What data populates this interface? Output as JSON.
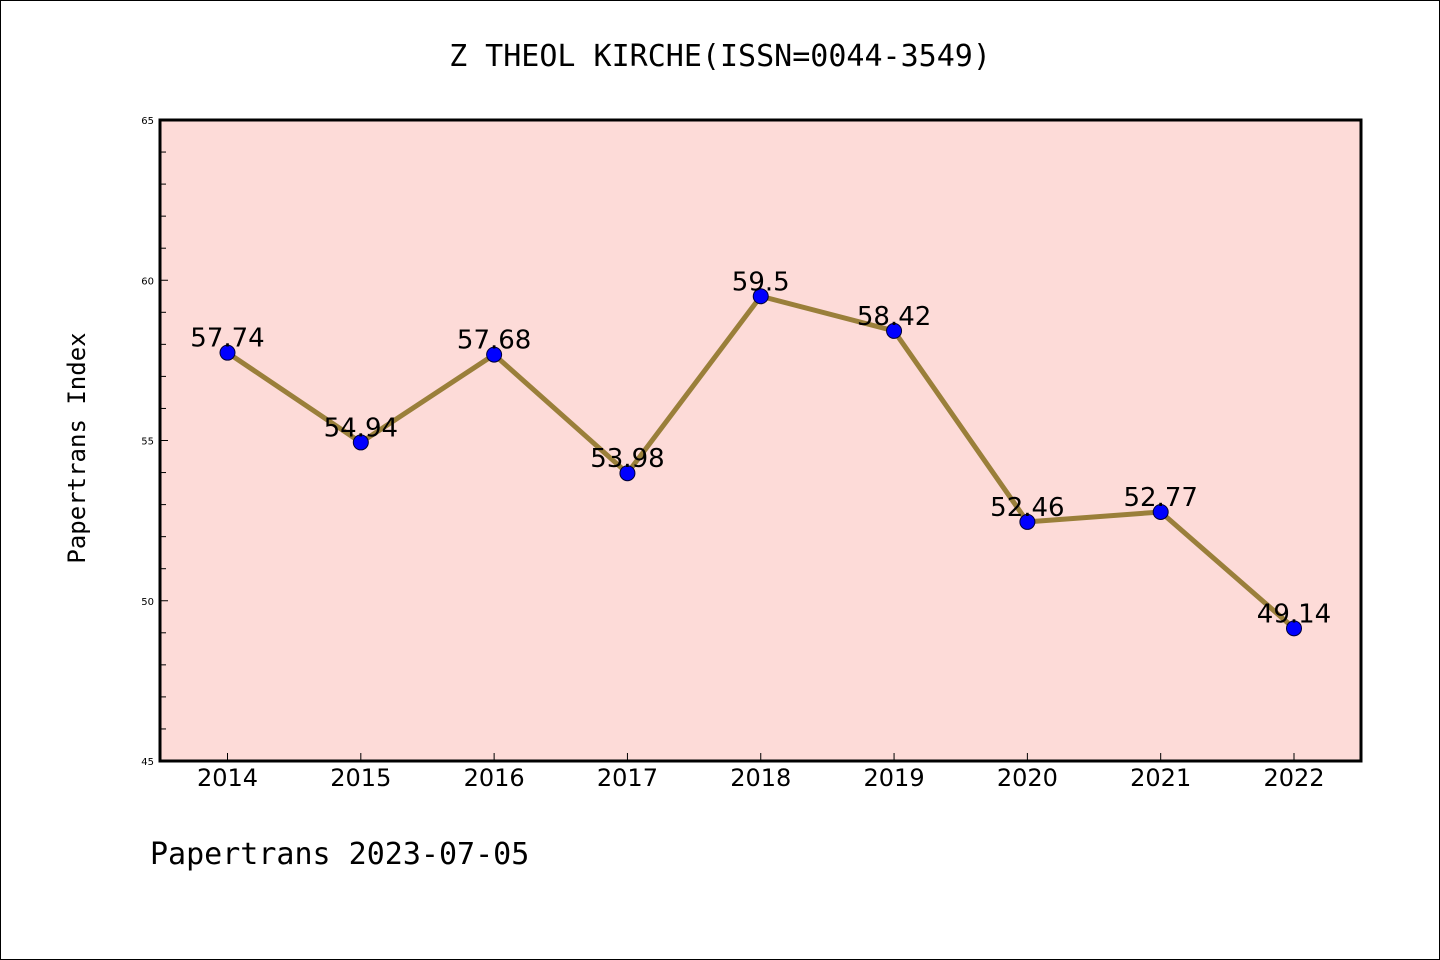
{
  "chart_data": {
    "type": "line",
    "title": "Z THEOL KIRCHE(ISSN=0044-3549)",
    "xlabel": "",
    "ylabel": "Papertrans Index",
    "categories": [
      "2014",
      "2015",
      "2016",
      "2017",
      "2018",
      "2019",
      "2020",
      "2021",
      "2022"
    ],
    "series": [
      {
        "values": [
          57.74,
          54.94,
          57.68,
          53.98,
          59.5,
          58.42,
          52.46,
          52.77,
          49.14
        ],
        "data_labels": [
          "57.74",
          "54.94",
          "57.68",
          "53.98",
          "59.5",
          "58.42",
          "52.46",
          "52.77",
          "49.14"
        ]
      }
    ],
    "ylim": [
      45,
      65
    ],
    "yticks": [
      "45",
      "50",
      "55",
      "60",
      "65"
    ],
    "grid": false,
    "legend": "none",
    "footer": "Papertrans 2023-07-05"
  },
  "colors": {
    "plot_background": "#fddbd8",
    "line": "#9a7f3a",
    "marker": "#0000ff",
    "axis": "#000000"
  }
}
